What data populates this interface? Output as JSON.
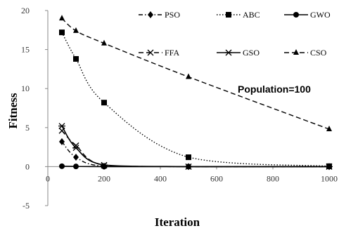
{
  "chart_data": {
    "type": "line",
    "title": "",
    "xlabel": "Iteration",
    "ylabel": "Fitness",
    "xlim": [
      0,
      1000
    ],
    "ylim": [
      -5,
      20
    ],
    "xticks": [
      "0",
      "200",
      "400",
      "600",
      "800",
      "1000"
    ],
    "yticks": [
      "-5",
      "0",
      "5",
      "10",
      "15",
      "20"
    ],
    "grid": false,
    "legend_position": "top",
    "annotation": "Population=100",
    "series": [
      {
        "name": "PSO",
        "style": "dash-dot",
        "marker": "diamond",
        "color": "#000000",
        "x": [
          50,
          100,
          200,
          500,
          1000
        ],
        "y": [
          3.2,
          1.2,
          0.05,
          0,
          0
        ]
      },
      {
        "name": "ABC",
        "style": "dotted",
        "marker": "square",
        "color": "#000000",
        "x": [
          50,
          100,
          200,
          500,
          1000
        ],
        "y": [
          17.2,
          13.8,
          8.2,
          1.2,
          0.05
        ]
      },
      {
        "name": "GWO",
        "style": "solid",
        "marker": "circle",
        "color": "#000000",
        "x": [
          50,
          100,
          200,
          500,
          1000
        ],
        "y": [
          0.05,
          0.02,
          0,
          0,
          0
        ]
      },
      {
        "name": "FFA",
        "style": "dash",
        "marker": "x",
        "color": "#000000",
        "x": [
          50,
          100,
          200,
          500,
          1000
        ],
        "y": [
          4.6,
          2.7,
          0.15,
          0,
          0
        ]
      },
      {
        "name": "GSO",
        "style": "solid",
        "marker": "asterisk",
        "color": "#000000",
        "x": [
          50,
          100,
          200,
          500,
          1000
        ],
        "y": [
          5.2,
          2.4,
          0.2,
          0,
          0
        ]
      },
      {
        "name": "CSO",
        "style": "dash",
        "marker": "triangle",
        "color": "#000000",
        "x": [
          50,
          100,
          200,
          500,
          1000
        ],
        "y": [
          19.0,
          17.4,
          15.8,
          11.5,
          4.8
        ]
      }
    ]
  }
}
